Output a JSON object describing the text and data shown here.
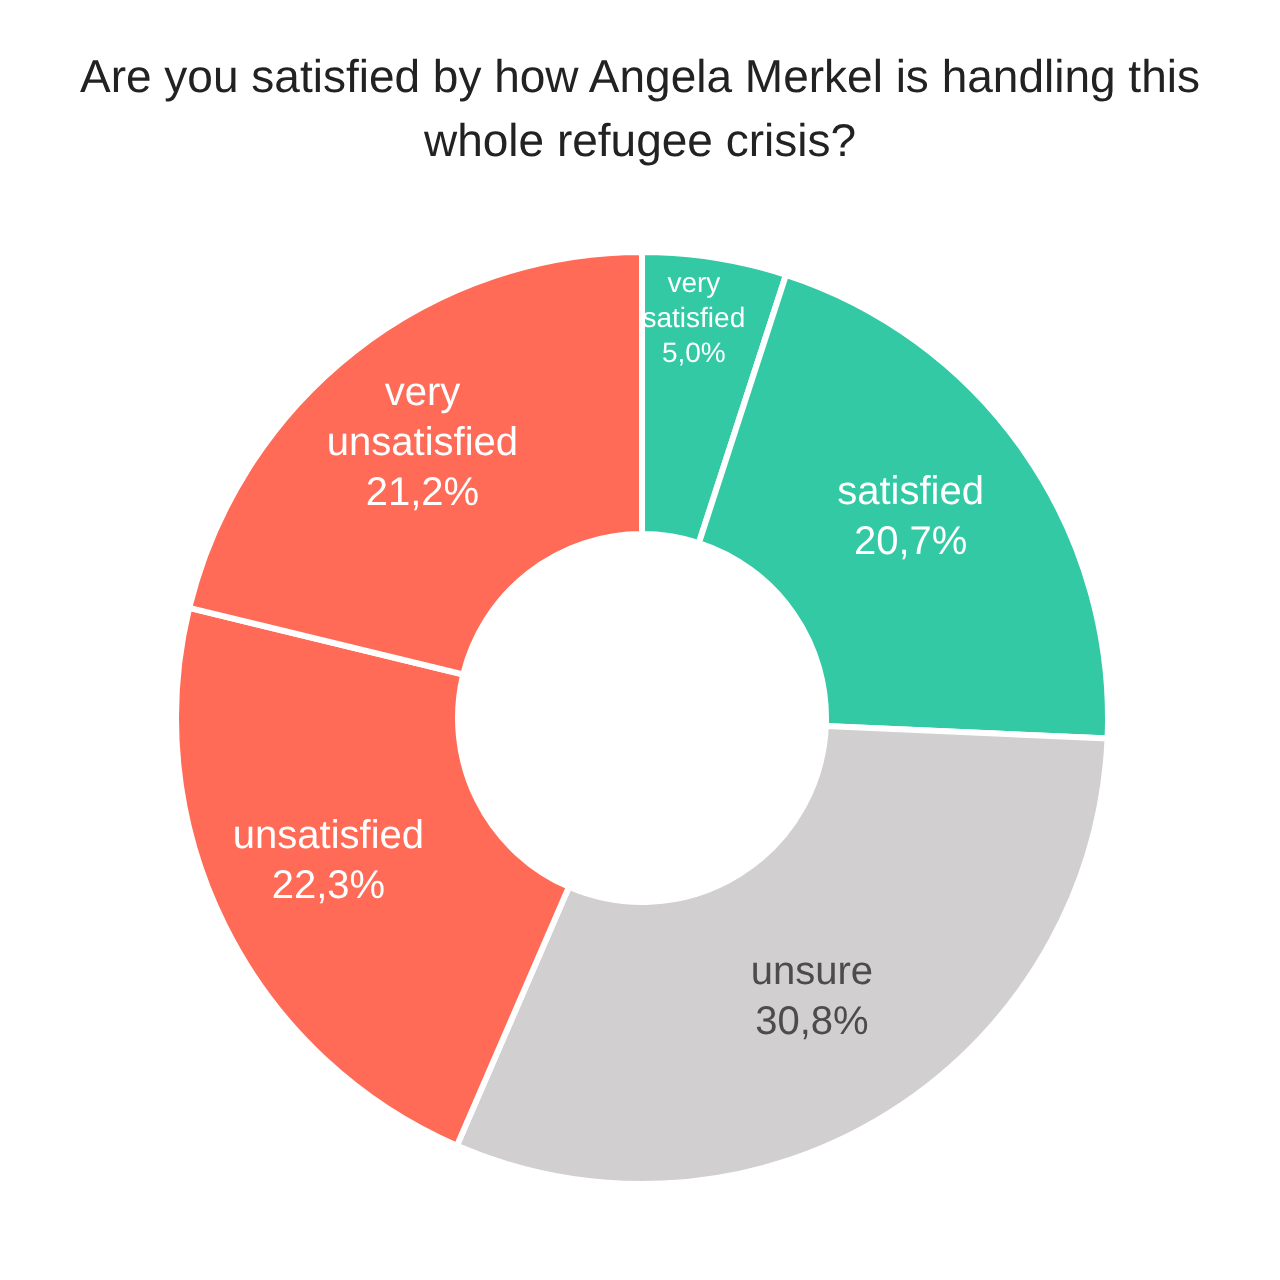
{
  "chart_data": {
    "type": "donut",
    "title": "Are you satisfied by how Angela Merkel is handling this whole refugee crisis?",
    "categories": [
      "very satisfied",
      "satisfied",
      "unsure",
      "unsatisfied",
      "very unsatisfied"
    ],
    "values": [
      5.0,
      20.7,
      30.8,
      22.3,
      21.2
    ],
    "value_labels": [
      "5,0%",
      "20,7%",
      "30,8%",
      "22,3%",
      "21,2%"
    ],
    "colors": [
      "#33c9a4",
      "#33c9a4",
      "#d1cfcf",
      "#ff6b57",
      "#ff6b57"
    ]
  }
}
